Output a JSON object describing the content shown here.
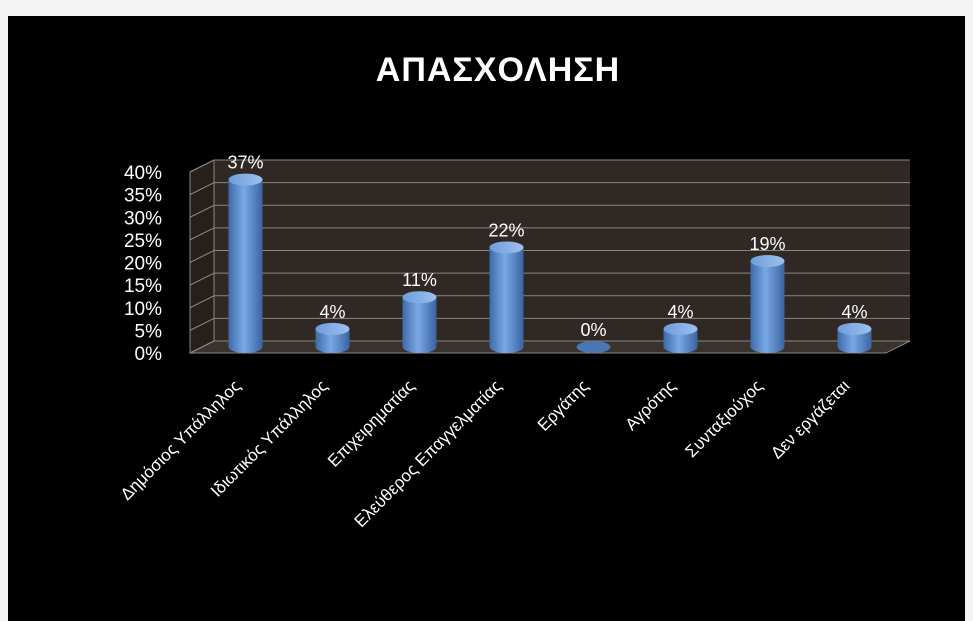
{
  "chart_data": {
    "type": "bar",
    "style": "3d-cylinder",
    "title": "ΑΠΑΣΧΟΛΗΣΗ",
    "categories": [
      "Δημόσιος Υπάλληλος",
      "Ιδιωτικός Υπάλληλος",
      "Επιχειρηματίας",
      "Ελεύθερος Επαγγελματίας",
      "Εργάτης",
      "Αγρότης",
      "Συνταξιούχος",
      "Δεν εργάζεται"
    ],
    "values": [
      37,
      4,
      11,
      22,
      0,
      4,
      19,
      4
    ],
    "data_labels": [
      "37%",
      "4%",
      "11%",
      "22%",
      "0%",
      "4%",
      "19%",
      "4%"
    ],
    "y_ticks": [
      "0%",
      "5%",
      "10%",
      "15%",
      "20%",
      "25%",
      "30%",
      "35%",
      "40%"
    ],
    "ylim": [
      0,
      40
    ],
    "grid": true,
    "legend": "none",
    "colors": {
      "background": "#000000",
      "plot_wall": "#2f2824",
      "plot_floor": "#3a322c",
      "gridline": "#8c8680",
      "bar": "#5b8fd1",
      "text": "#ffffff"
    }
  }
}
